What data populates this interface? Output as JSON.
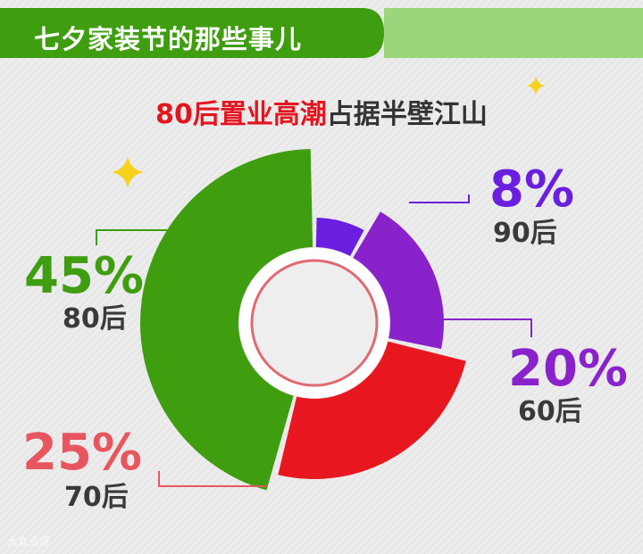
{
  "header": {
    "title": "七夕家装节的那些事儿"
  },
  "subtitle": {
    "part1": "80后置业高潮",
    "part2": "占据半壁江山"
  },
  "chart_data": {
    "type": "pie",
    "categories": [
      "90后",
      "60后",
      "70后",
      "80后"
    ],
    "values": [
      8,
      20,
      25,
      45
    ],
    "value_labels": [
      "8%",
      "20%",
      "25%",
      "45%"
    ],
    "colors": [
      "#6a1fe0",
      "#8a22cc",
      "#e8171f",
      "#3f9d10"
    ],
    "label_colors": [
      "#6a1fe0",
      "#8a22cc",
      "#e7565f",
      "#3f9d10"
    ]
  },
  "watermark": "大众点评"
}
